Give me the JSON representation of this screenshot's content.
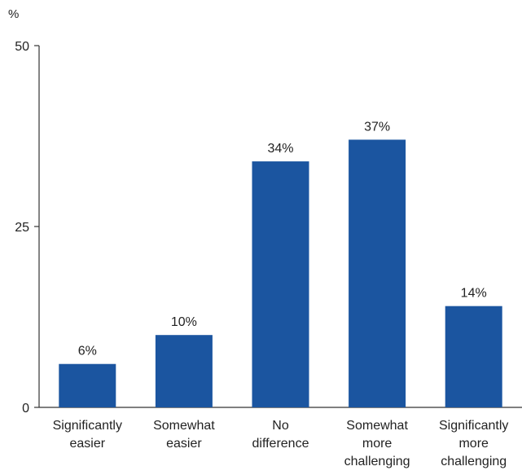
{
  "chart_data": {
    "type": "bar",
    "unit_label": "%",
    "categories": [
      [
        "Significantly",
        "easier"
      ],
      [
        "Somewhat",
        "easier"
      ],
      [
        "No",
        "difference"
      ],
      [
        "Somewhat",
        "more",
        "challenging"
      ],
      [
        "Significantly",
        "more",
        "challenging"
      ]
    ],
    "values": [
      6,
      10,
      34,
      37,
      14
    ],
    "value_labels": [
      "6%",
      "10%",
      "34%",
      "37%",
      "14%"
    ],
    "y_ticks": [
      0,
      25,
      50
    ],
    "ylim": [
      0,
      50
    ],
    "grid": false,
    "colors": {
      "bar": "#1b55a0",
      "axis": "#333333",
      "text": "#222222"
    }
  }
}
